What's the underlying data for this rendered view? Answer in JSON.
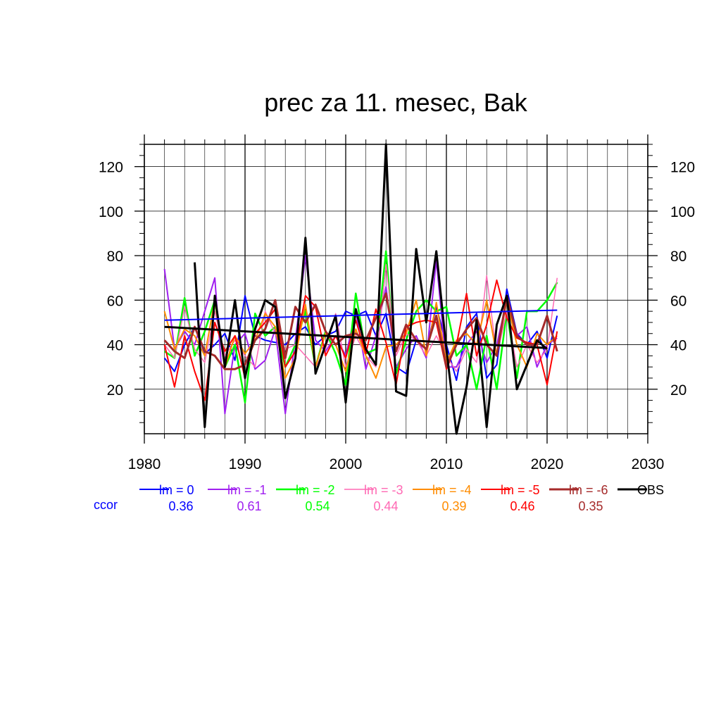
{
  "chart_data": {
    "type": "line",
    "title": "prec za 11. mesec, Bak",
    "xlabel": "",
    "ylabel": "",
    "xlim": [
      1980,
      2030
    ],
    "ylim": [
      0,
      130
    ],
    "x_ticks": [
      1980,
      1990,
      2000,
      2010,
      2020,
      2030
    ],
    "y_ticks": [
      20,
      40,
      60,
      80,
      100,
      120
    ],
    "grid": true,
    "legend_position": "bottom",
    "ccor_label": "ccor",
    "series": [
      {
        "name": "lm = 0",
        "color": "#0000ff",
        "width": 2,
        "ccor": "0.36",
        "x": [
          1982,
          1983,
          1984,
          1985,
          1986,
          1987,
          1988,
          1989,
          1990,
          1991,
          1992,
          1993,
          1994,
          1995,
          1996,
          1997,
          1998,
          1999,
          2000,
          2001,
          2002,
          2003,
          2004,
          2005,
          2006,
          2007,
          2008,
          2009,
          2010,
          2011,
          2012,
          2013,
          2014,
          2015,
          2016,
          2017,
          2018,
          2019,
          2020,
          2021
        ],
        "y": [
          34,
          28,
          40,
          48,
          36,
          40,
          45,
          33,
          62,
          44,
          42,
          41,
          40,
          45,
          48,
          40,
          44,
          46,
          55,
          53,
          55,
          44,
          54,
          30,
          27,
          42,
          38,
          57,
          40,
          24,
          48,
          54,
          25,
          31,
          65,
          45,
          40,
          46,
          34,
          53
        ]
      },
      {
        "name": "lm = -1",
        "color": "#a020f0",
        "width": 2,
        "ccor": "0.61",
        "x": [
          1982,
          1983,
          1984,
          1985,
          1986,
          1987,
          1988,
          1989,
          1990,
          1991,
          1992,
          1993,
          1994,
          1995,
          1996,
          1997,
          1998,
          1999,
          2000,
          2001,
          2002,
          2003,
          2004,
          2005,
          2006,
          2007,
          2008,
          2009,
          2010,
          2011,
          2012,
          2013,
          2014,
          2015,
          2016,
          2017,
          2018,
          2019,
          2020,
          2021
        ],
        "y": [
          74,
          38,
          46,
          40,
          55,
          70,
          9,
          40,
          45,
          29,
          33,
          47,
          9,
          42,
          80,
          42,
          37,
          44,
          35,
          55,
          29,
          44,
          66,
          30,
          38,
          44,
          34,
          78,
          30,
          30,
          40,
          46,
          32,
          40,
          60,
          44,
          48,
          30,
          40,
          43
        ]
      },
      {
        "name": "lm = -2",
        "color": "#00ff00",
        "width": 2.5,
        "ccor": "0.54",
        "x": [
          1982,
          1983,
          1984,
          1985,
          1986,
          1987,
          1988,
          1989,
          1990,
          1991,
          1992,
          1993,
          1994,
          1995,
          1996,
          1997,
          1998,
          1999,
          2000,
          2001,
          2002,
          2003,
          2004,
          2005,
          2006,
          2007,
          2008,
          2009,
          2010,
          2011,
          2012,
          2013,
          2014,
          2015,
          2016,
          2017,
          2018,
          2019,
          2020,
          2021
        ],
        "y": [
          37,
          34,
          61,
          35,
          46,
          60,
          30,
          40,
          14,
          54,
          44,
          48,
          30,
          40,
          55,
          30,
          46,
          36,
          22,
          63,
          36,
          38,
          82,
          27,
          42,
          55,
          60,
          55,
          57,
          35,
          40,
          20,
          44,
          20,
          55,
          25,
          55,
          55,
          60,
          68
        ]
      },
      {
        "name": "lm = -3",
        "color": "#ff69b4",
        "width": 1.5,
        "ccor": "0.44",
        "x": [
          1982,
          1983,
          1984,
          1985,
          1986,
          1987,
          1988,
          1989,
          1990,
          1991,
          1992,
          1993,
          1994,
          1995,
          1996,
          1997,
          1998,
          1999,
          2000,
          2001,
          2002,
          2003,
          2004,
          2005,
          2006,
          2007,
          2008,
          2009,
          2010,
          2011,
          2012,
          2013,
          2014,
          2015,
          2016,
          2017,
          2018,
          2019,
          2020,
          2021
        ],
        "y": [
          40,
          34,
          57,
          38,
          32,
          55,
          35,
          42,
          35,
          30,
          55,
          45,
          38,
          40,
          35,
          30,
          38,
          54,
          30,
          44,
          35,
          30,
          76,
          35,
          45,
          42,
          35,
          44,
          35,
          28,
          38,
          32,
          71,
          35,
          55,
          30,
          40,
          32,
          38,
          70
        ]
      },
      {
        "name": "lm = -4",
        "color": "#ff8c00",
        "width": 2,
        "ccor": "0.39",
        "x": [
          1982,
          1983,
          1984,
          1985,
          1986,
          1987,
          1988,
          1989,
          1990,
          1991,
          1992,
          1993,
          1994,
          1995,
          1996,
          1997,
          1998,
          1999,
          2000,
          2001,
          2002,
          2003,
          2004,
          2005,
          2006,
          2007,
          2008,
          2009,
          2010,
          2011,
          2012,
          2013,
          2014,
          2015,
          2016,
          2017,
          2018,
          2019,
          2020,
          2021
        ],
        "y": [
          55,
          38,
          47,
          44,
          35,
          60,
          30,
          44,
          36,
          42,
          54,
          48,
          25,
          34,
          58,
          30,
          45,
          40,
          28,
          47,
          35,
          25,
          39,
          40,
          45,
          60,
          35,
          59,
          32,
          42,
          45,
          40,
          60,
          35,
          60,
          40,
          30,
          45,
          40,
          44
        ]
      },
      {
        "name": "lm = -5",
        "color": "#ff0000",
        "width": 2,
        "ccor": "0.46",
        "x": [
          1982,
          1983,
          1984,
          1985,
          1986,
          1987,
          1988,
          1989,
          1990,
          1991,
          1992,
          1993,
          1994,
          1995,
          1996,
          1997,
          1998,
          1999,
          2000,
          2001,
          2002,
          2003,
          2004,
          2005,
          2006,
          2007,
          2008,
          2009,
          2010,
          2011,
          2012,
          2013,
          2014,
          2015,
          2016,
          2017,
          2018,
          2019,
          2020,
          2021
        ],
        "y": [
          40,
          21,
          44,
          28,
          15,
          50,
          37,
          44,
          25,
          45,
          50,
          56,
          30,
          37,
          62,
          57,
          35,
          44,
          34,
          51,
          36,
          56,
          41,
          22,
          48,
          50,
          51,
          50,
          29,
          40,
          63,
          35,
          49,
          69,
          52,
          43,
          41,
          40,
          22,
          46
        ]
      },
      {
        "name": "lm = -6",
        "color": "#a52a2a",
        "width": 3,
        "ccor": "0.35",
        "x": [
          1982,
          1983,
          1984,
          1985,
          1986,
          1987,
          1988,
          1989,
          1990,
          1991,
          1992,
          1993,
          1994,
          1995,
          1996,
          1997,
          1998,
          1999,
          2000,
          2001,
          2002,
          2003,
          2004,
          2005,
          2006,
          2007,
          2008,
          2009,
          2010,
          2011,
          2012,
          2013,
          2014,
          2015,
          2016,
          2017,
          2018,
          2019,
          2020,
          2021
        ],
        "y": [
          42,
          37,
          34,
          48,
          37,
          35,
          29,
          29,
          31,
          42,
          47,
          60,
          34,
          57,
          50,
          58,
          46,
          40,
          44,
          45,
          42,
          52,
          63,
          37,
          49,
          42,
          38,
          53,
          30,
          40,
          47,
          52,
          40,
          35,
          62,
          44,
          40,
          40,
          53,
          37
        ]
      },
      {
        "name": "OBS",
        "color": "#000000",
        "width": 3,
        "ccor": "",
        "x": [
          1985,
          1986,
          1987,
          1988,
          1989,
          1990,
          1991,
          1992,
          1993,
          1994,
          1995,
          1996,
          1997,
          1998,
          1999,
          2000,
          2001,
          2002,
          2003,
          2004,
          2005,
          2006,
          2007,
          2008,
          2009,
          2010,
          2011,
          2012,
          2013,
          2014,
          2015,
          2016,
          2017,
          2018,
          2019,
          2020
        ],
        "y": [
          77,
          3,
          62,
          30,
          60,
          25,
          47,
          60,
          57,
          16,
          34,
          88,
          27,
          40,
          53,
          14,
          56,
          38,
          31,
          130,
          19,
          17,
          83,
          50,
          82,
          38,
          0,
          21,
          51,
          3,
          49,
          62,
          20,
          31,
          42,
          38
        ]
      }
    ],
    "trend_lines": [
      {
        "name": "lm = 0 trend",
        "color": "#0000ff",
        "width": 2,
        "x": [
          1982,
          2021
        ],
        "y": [
          51,
          55.5
        ]
      },
      {
        "name": "OBS trend",
        "color": "#000000",
        "width": 3,
        "x": [
          1982,
          2020
        ],
        "y": [
          48,
          38.5
        ]
      }
    ]
  }
}
